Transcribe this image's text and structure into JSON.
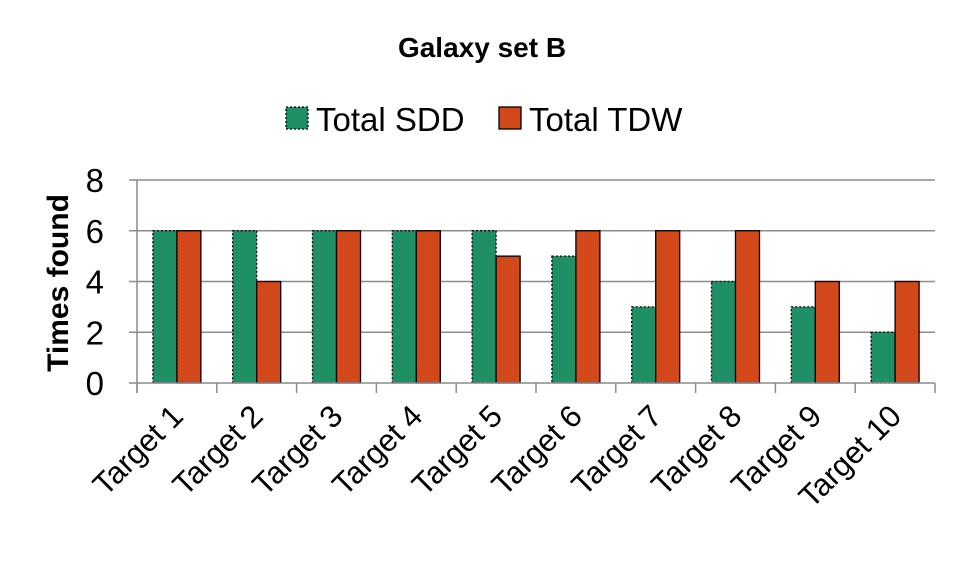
{
  "chart_data": {
    "type": "bar",
    "title": "Galaxy set B",
    "xlabel": "",
    "ylabel": "Times found",
    "ylim": [
      0,
      8
    ],
    "yticks": [
      0,
      2,
      4,
      6,
      8
    ],
    "grid": true,
    "legend_position": "top",
    "categories": [
      "Target 1",
      "Target 2",
      "Target 3",
      "Target 4",
      "Target 5",
      "Target 6",
      "Target 7",
      "Target 8",
      "Target 9",
      "Target 10"
    ],
    "series": [
      {
        "name": "Total SDD",
        "color": "#1f8f66",
        "border": "dashed",
        "values": [
          6,
          6,
          6,
          6,
          6,
          5,
          3,
          4,
          3,
          2
        ]
      },
      {
        "name": "Total TDW",
        "color": "#d2481a",
        "border": "solid",
        "values": [
          6,
          4,
          6,
          6,
          5,
          6,
          6,
          6,
          4,
          4
        ]
      }
    ]
  }
}
